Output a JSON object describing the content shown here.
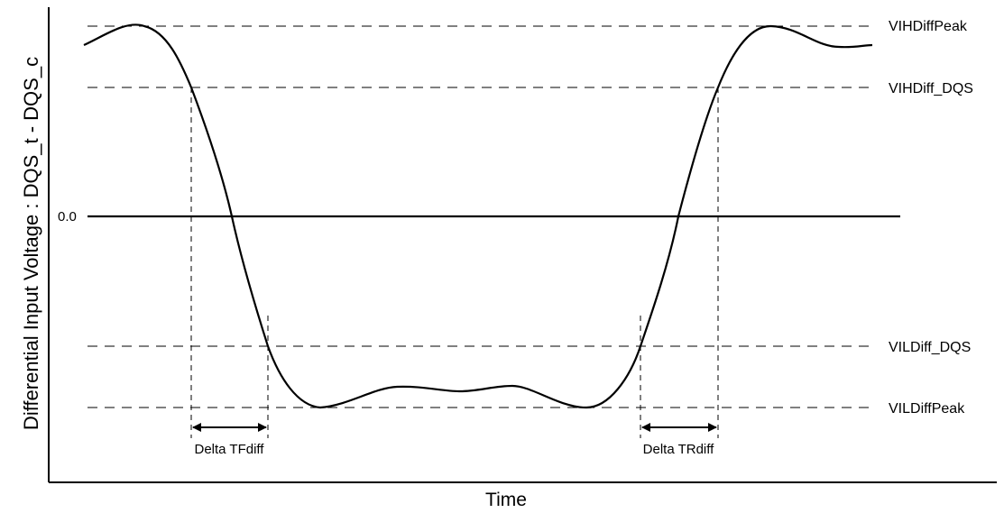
{
  "axes": {
    "ylabel": "Differential Input Voltage : DQS_t - DQS_c",
    "xlabel": "Time",
    "zero_label": "0.0"
  },
  "levels": {
    "vih_peak": "VIHDiffPeak",
    "vih_dqs": "VIHDiff_DQS",
    "vil_dqs": "VILDiff_DQS",
    "vil_peak": "VILDiffPeak"
  },
  "deltas": {
    "fall": "Delta TFdiff",
    "rise": "Delta TRdiff"
  },
  "colors": {
    "stroke": "#000000",
    "background": "#ffffff"
  }
}
